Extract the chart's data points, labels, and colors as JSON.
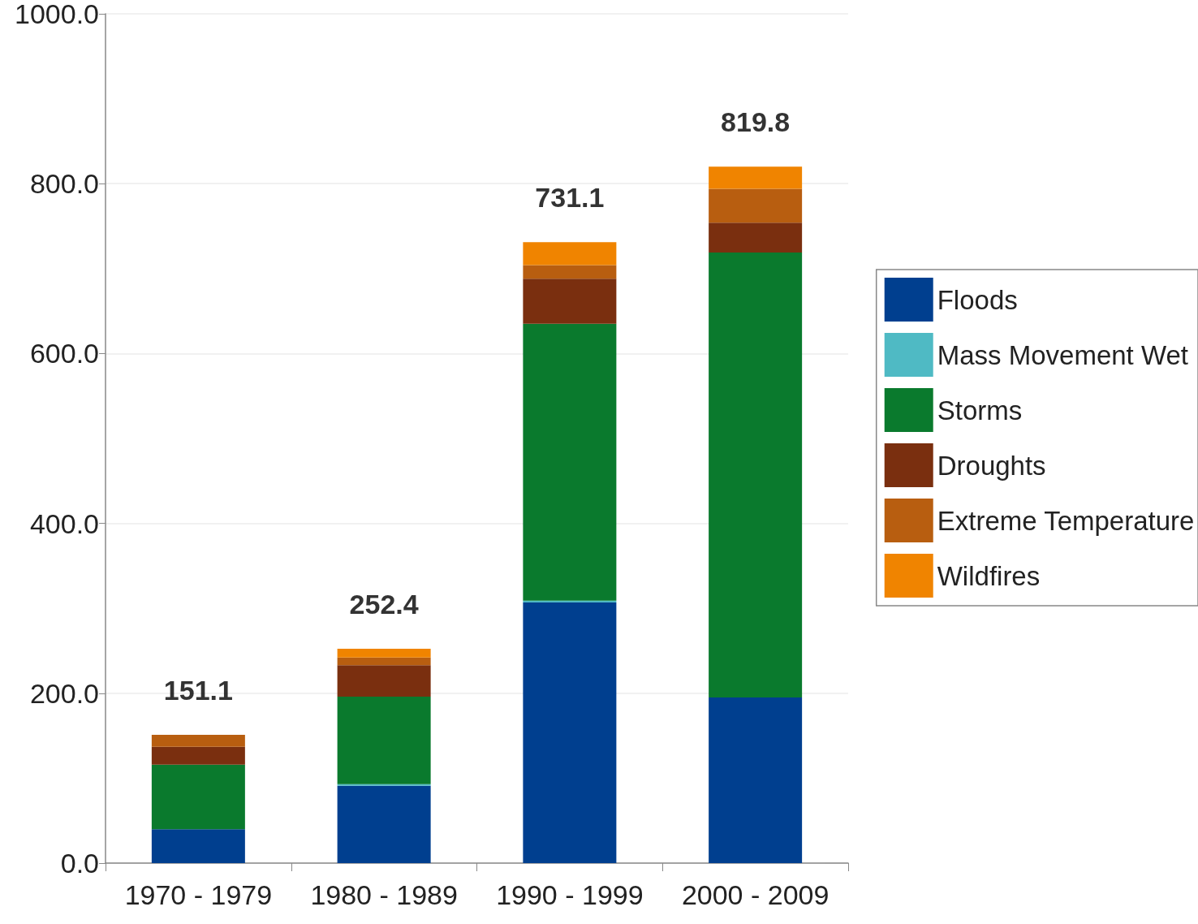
{
  "chart_data": {
    "type": "bar",
    "stacked": true,
    "categories": [
      "1970 - 1979",
      "1980 - 1989",
      "1990 - 1999",
      "2000 - 2009"
    ],
    "series": [
      {
        "name": "Floods",
        "color": "#003f8f",
        "values": [
          40,
          91,
          307,
          195
        ]
      },
      {
        "name": "Mass Movement Wet",
        "color": "#4fbac4",
        "values": [
          null,
          2,
          2,
          null
        ]
      },
      {
        "name": "Storms",
        "color": "#0a7a2d",
        "values": [
          76,
          103,
          326,
          524
        ]
      },
      {
        "name": "Droughts",
        "color": "#7a2f0f",
        "values": [
          21,
          37,
          53,
          35
        ]
      },
      {
        "name": "Extreme Temperature",
        "color": "#b85e10",
        "values": [
          14,
          9,
          16,
          40
        ]
      },
      {
        "name": "Wildfires",
        "color": "#f08400",
        "values": [
          null,
          10.4,
          27,
          26
        ]
      }
    ],
    "totals": [
      "151.1",
      "252.4",
      "731.1",
      "819.8"
    ],
    "ylim": [
      0,
      1000
    ],
    "yticks": [
      {
        "value": 0,
        "label": "0.0"
      },
      {
        "value": 200,
        "label": "200.0"
      },
      {
        "value": 400,
        "label": "400.0"
      },
      {
        "value": 600,
        "label": "600.0"
      },
      {
        "value": 800,
        "label": "800.0"
      },
      {
        "value": 1000,
        "label": "1000.0"
      }
    ],
    "grid": "y",
    "legend": "right"
  }
}
